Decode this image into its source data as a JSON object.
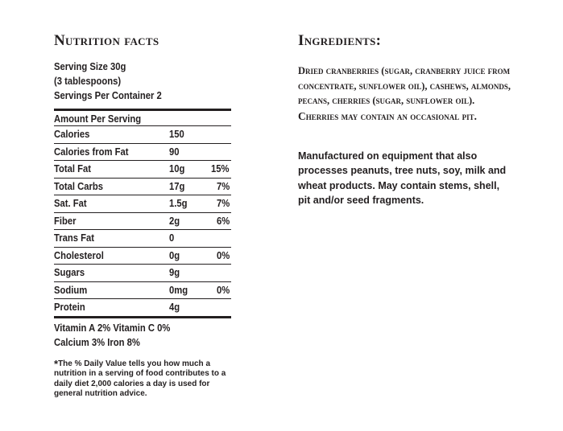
{
  "nutrition": {
    "title": "Nutrition facts",
    "serving_size": "Serving Size 30g",
    "serving_note": "(3 tablespoons)",
    "servings_per_container": "Servings Per Container 2",
    "amount_per_serving": "Amount Per Serving",
    "rows": [
      {
        "name": "Calories",
        "amount": "150",
        "dv": ""
      },
      {
        "name": "Calories from Fat",
        "amount": "90",
        "dv": ""
      },
      {
        "name": "Total Fat",
        "amount": "10g",
        "dv": "15%"
      },
      {
        "name": "Total Carbs",
        "amount": "17g",
        "dv": "7%"
      },
      {
        "name": "Sat. Fat",
        "amount": "1.5g",
        "dv": "7%"
      },
      {
        "name": "Fiber",
        "amount": "2g",
        "dv": "6%"
      },
      {
        "name": "Trans Fat",
        "amount": "0",
        "dv": ""
      },
      {
        "name": "Cholesterol",
        "amount": "0g",
        "dv": "0%"
      },
      {
        "name": "Sugars",
        "amount": "9g",
        "dv": ""
      },
      {
        "name": "Sodium",
        "amount": "0mg",
        "dv": "0%"
      },
      {
        "name": "Protein",
        "amount": "4g",
        "dv": ""
      }
    ],
    "vitamins_line1": "Vitamin A  2%  Vitamin C  0%",
    "vitamins_line2": "Calcium  3%  Iron  8%",
    "footnote_star": "*",
    "footnote": "The % Daily Value tells you how much a nutrition in a serving of food contributes to a daily diet 2,000 calories a day is used for general nutrition advice."
  },
  "ingredients": {
    "title": "Ingredients:",
    "text": "Dried cranberries (sugar, cranberry juice from concentrate, sunflower oil), cashews, almonds, pecans, cherries (sugar, sunflower oil).",
    "warning": "Cherries may contain an occasional pit.",
    "allergen": "Manufactured on equipment that also processes peanuts, tree nuts, soy, milk and wheat products. May contain stems, shell, pit and/or seed fragments."
  }
}
